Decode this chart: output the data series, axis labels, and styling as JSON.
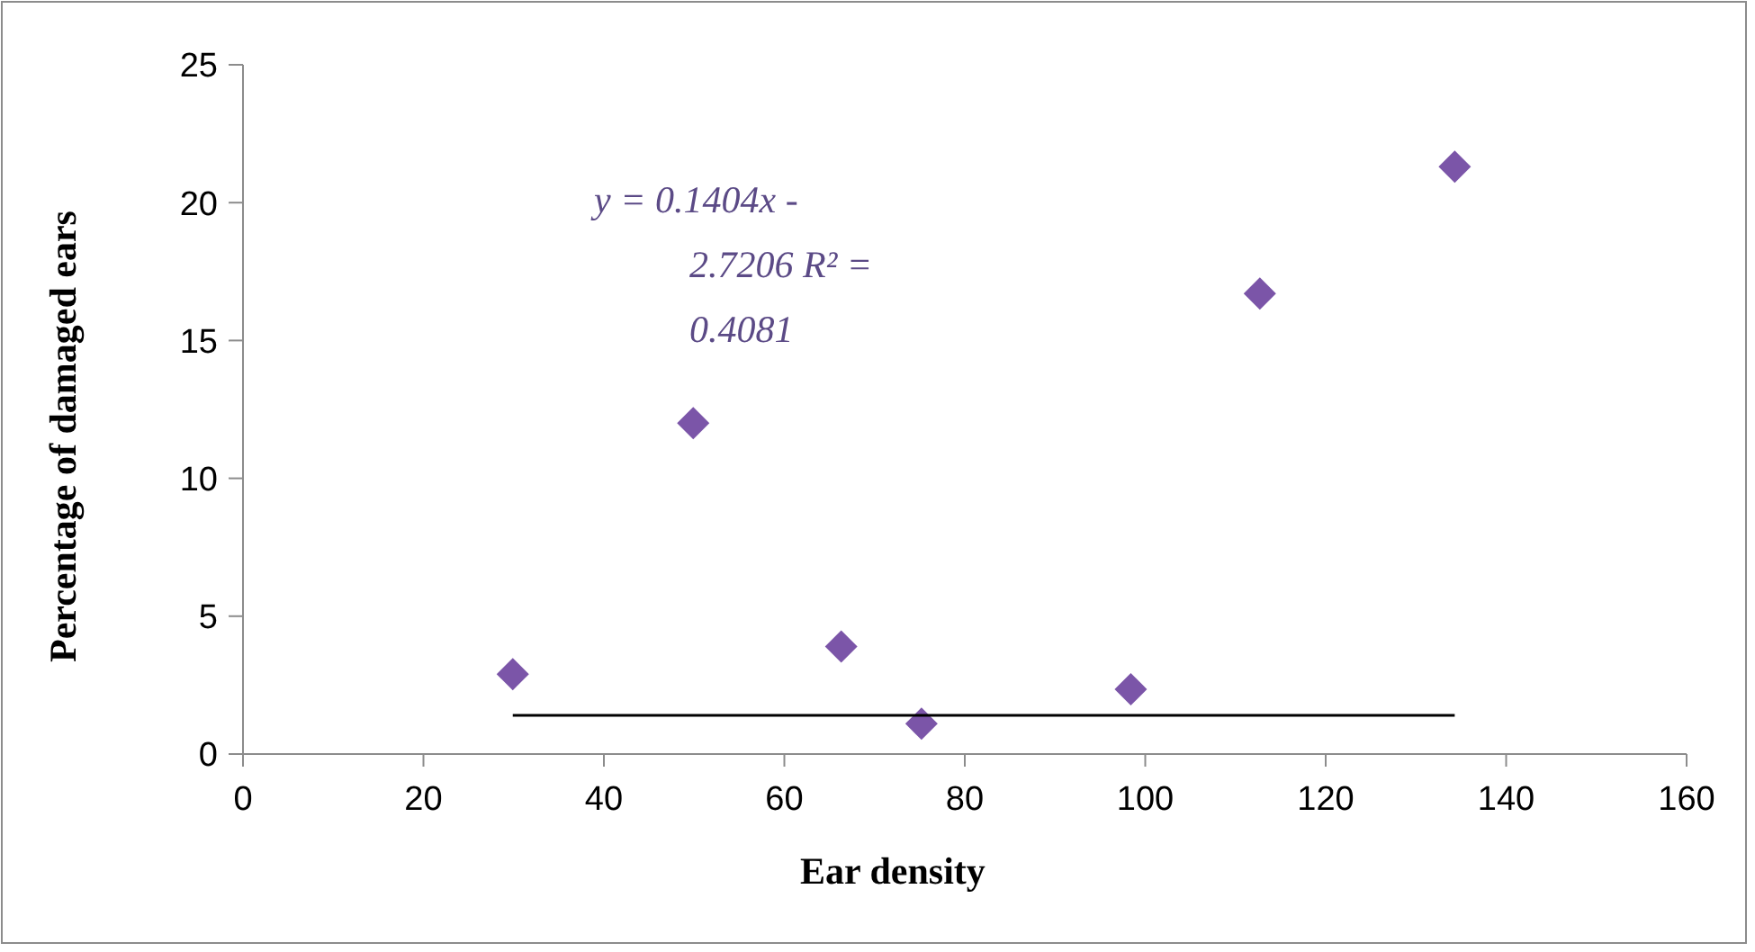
{
  "chart_data": {
    "type": "scatter",
    "xlabel": "Ear density",
    "ylabel": "Percentage of damaged ears",
    "x": [
      29.9,
      49.9,
      66.3,
      75.2,
      98.4,
      112.7,
      134.3
    ],
    "series": [
      {
        "color": "#7b55a8",
        "values": [
          2.9,
          12.0,
          3.9,
          1.1,
          2.35,
          16.7,
          21.3
        ],
        "marker": "diamond"
      },
      {
        "type": "line",
        "color": "#000000",
        "x": [
          29.9,
          134.3
        ],
        "values": [
          1.4,
          1.4
        ],
        "marker": "none",
        "line_style": "solid"
      }
    ],
    "xlim": [
      0,
      160
    ],
    "xticks": [
      0,
      20,
      40,
      60,
      80,
      100,
      120,
      140,
      160
    ],
    "ylim": [
      0,
      25
    ],
    "yticks": [
      0,
      5,
      10,
      15,
      20,
      25
    ],
    "annotations": [
      "y = 0.1404x - 2.7206 R² = 0.4081"
    ],
    "grid": false
  }
}
